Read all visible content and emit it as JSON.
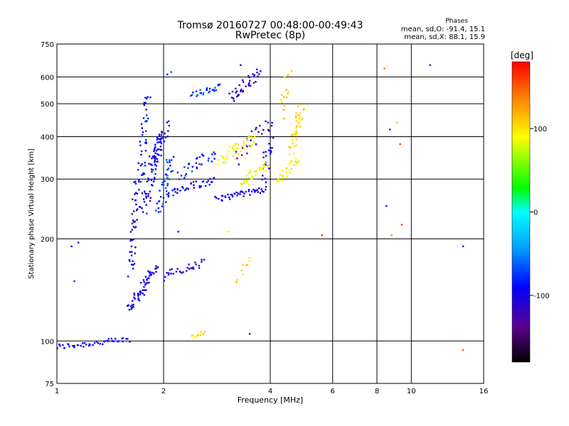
{
  "chart_data": {
    "type": "scatter",
    "title": "Tromsø 20160727 00:48:00-00:49:43",
    "subtitle": "RwPretec (8p)",
    "stats_header": "Phases",
    "stats_lines": [
      "mean, sd,O: -91.4, 15.1",
      "mean, sd,X:  88.1, 15.9"
    ],
    "xlabel": "Frequency [MHz]",
    "ylabel": "Stationary phase Virtual Height [km]",
    "x_scale": "log",
    "y_scale": "log",
    "xlim": [
      1,
      16
    ],
    "ylim": [
      75,
      750
    ],
    "grid": true,
    "x_ticks": [
      1,
      2,
      4,
      6,
      8,
      10,
      16
    ],
    "x_tick_labels": [
      "1",
      "2",
      "4",
      "6",
      "8",
      "10",
      "16"
    ],
    "y_ticks": [
      75,
      100,
      200,
      300,
      400,
      500,
      600,
      750
    ],
    "y_tick_labels": [
      "75",
      "100",
      "200",
      "300",
      "400",
      "500",
      "600",
      "750"
    ],
    "colorbar": {
      "label": "[deg]",
      "range": [
        -180,
        180
      ],
      "ticks": [
        100,
        0,
        -100
      ],
      "tick_labels": [
        "100",
        "0",
        "-100"
      ]
    },
    "traces": [
      {
        "f": [
          1.0,
          1.6
        ],
        "h": [
          96,
          101
        ],
        "phase": -95,
        "n": 45,
        "jitter": 0.02
      },
      {
        "f": [
          1.6,
          1.9
        ],
        "h": [
          125,
          165
        ],
        "phase": -100,
        "n": 60,
        "jitter": 0.04
      },
      {
        "f": [
          1.62,
          1.68
        ],
        "h": [
          160,
          300
        ],
        "phase": -100,
        "n": 45,
        "jitter": 0.04
      },
      {
        "f": [
          1.75,
          1.95
        ],
        "h": [
          240,
          390
        ],
        "phase": -95,
        "n": 55,
        "jitter": 0.05
      },
      {
        "f": [
          1.72,
          1.8
        ],
        "h": [
          300,
          540
        ],
        "phase": -90,
        "n": 40,
        "jitter": 0.05
      },
      {
        "f": [
          1.85,
          2.05
        ],
        "h": [
          330,
          430
        ],
        "phase": -95,
        "n": 40,
        "jitter": 0.05
      },
      {
        "f": [
          1.95,
          2.1
        ],
        "h": [
          240,
          350
        ],
        "phase": -75,
        "n": 40,
        "jitter": 0.05
      },
      {
        "f": [
          2.0,
          2.6
        ],
        "h": [
          155,
          170
        ],
        "phase": -105,
        "n": 30,
        "jitter": 0.03
      },
      {
        "f": [
          2.05,
          2.8
        ],
        "h": [
          270,
          300
        ],
        "phase": -90,
        "n": 40,
        "jitter": 0.03
      },
      {
        "f": [
          2.2,
          2.8
        ],
        "h": [
          310,
          360
        ],
        "phase": -80,
        "n": 30,
        "jitter": 0.04
      },
      {
        "f": [
          2.4,
          2.9
        ],
        "h": [
          530,
          560
        ],
        "phase": -75,
        "n": 25,
        "jitter": 0.02
      },
      {
        "f": [
          2.8,
          3.9
        ],
        "h": [
          262,
          280
        ],
        "phase": -100,
        "n": 45,
        "jitter": 0.02
      },
      {
        "f": [
          3.1,
          3.7
        ],
        "h": [
          520,
          620
        ],
        "phase": -110,
        "n": 40,
        "jitter": 0.04
      },
      {
        "f": [
          3.2,
          3.9
        ],
        "h": [
          340,
          440
        ],
        "phase": -115,
        "n": 20,
        "jitter": 0.05
      },
      {
        "f": [
          3.8,
          4.05
        ],
        "h": [
          300,
          430
        ],
        "phase": -95,
        "n": 30,
        "jitter": 0.05
      },
      {
        "f": [
          2.9,
          3.6
        ],
        "h": [
          340,
          400
        ],
        "phase": 90,
        "n": 45,
        "jitter": 0.05
      },
      {
        "f": [
          3.3,
          3.9
        ],
        "h": [
          290,
          330
        ],
        "phase": 85,
        "n": 35,
        "jitter": 0.04
      },
      {
        "f": [
          4.2,
          4.8
        ],
        "h": [
          300,
          340
        ],
        "phase": 95,
        "n": 25,
        "jitter": 0.03
      },
      {
        "f": [
          4.6,
          4.9
        ],
        "h": [
          370,
          480
        ],
        "phase": 100,
        "n": 45,
        "jitter": 0.05
      },
      {
        "f": [
          4.3,
          4.5
        ],
        "h": [
          470,
          600
        ],
        "phase": 110,
        "n": 15,
        "jitter": 0.04
      },
      {
        "f": [
          2.4,
          2.6
        ],
        "h": [
          103,
          106
        ],
        "phase": 105,
        "n": 10,
        "jitter": 0.01
      },
      {
        "f": [
          3.2,
          3.5
        ],
        "h": [
          150,
          175
        ],
        "phase": 100,
        "n": 10,
        "jitter": 0.03
      }
    ],
    "isolated_points": [
      {
        "f": 1.1,
        "h": 190,
        "phase": -100
      },
      {
        "f": 1.15,
        "h": 195,
        "phase": -100
      },
      {
        "f": 1.12,
        "h": 150,
        "phase": -80
      },
      {
        "f": 2.05,
        "h": 610,
        "phase": -80
      },
      {
        "f": 2.1,
        "h": 620,
        "phase": -75
      },
      {
        "f": 2.2,
        "h": 210,
        "phase": -90
      },
      {
        "f": 3.05,
        "h": 210,
        "phase": 100
      },
      {
        "f": 3.3,
        "h": 650,
        "phase": -110
      },
      {
        "f": 3.5,
        "h": 105,
        "phase": -120
      },
      {
        "f": 4.6,
        "h": 625,
        "phase": 110
      },
      {
        "f": 5.6,
        "h": 205,
        "phase": 160
      },
      {
        "f": 8.4,
        "h": 635,
        "phase": 140
      },
      {
        "f": 8.5,
        "h": 250,
        "phase": -120
      },
      {
        "f": 8.7,
        "h": 420,
        "phase": -80
      },
      {
        "f": 8.8,
        "h": 205,
        "phase": 130
      },
      {
        "f": 9.1,
        "h": 440,
        "phase": 110
      },
      {
        "f": 9.3,
        "h": 380,
        "phase": 165
      },
      {
        "f": 9.4,
        "h": 220,
        "phase": 160
      },
      {
        "f": 11.3,
        "h": 650,
        "phase": -130
      },
      {
        "f": 14.0,
        "h": 190,
        "phase": -90
      },
      {
        "f": 14.0,
        "h": 94,
        "phase": 150
      }
    ]
  }
}
